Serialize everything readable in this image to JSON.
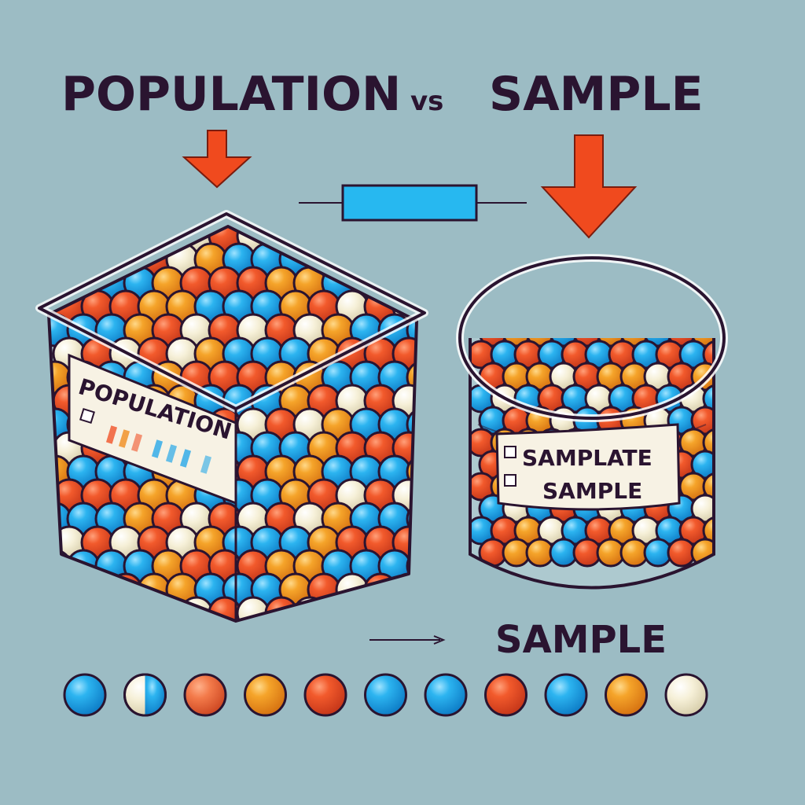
{
  "title": {
    "left": "POPULATION",
    "connector": "VS",
    "right": "SAMPLE"
  },
  "population_container": {
    "label": "POPULATION",
    "shape": "square-tub"
  },
  "sample_container": {
    "label_line1": "SAMPLATE",
    "label_line2": "SAMPLE",
    "shape": "round-jar"
  },
  "bottom_caption": "SAMPLE",
  "colors": {
    "background": "#9cbcc4",
    "outline": "#2a1430",
    "arrow": "#f04a1e",
    "connector_bar": "#27b8f0",
    "ball_blue": "#27a8e8",
    "ball_orange": "#f08c1e",
    "ball_red": "#f05228",
    "ball_cream": "#f4eed6"
  },
  "sample_row": [
    "blue",
    "half-blue-cream",
    "red-orange",
    "orange",
    "red",
    "blue",
    "blue",
    "red",
    "blue",
    "orange",
    "cream"
  ]
}
